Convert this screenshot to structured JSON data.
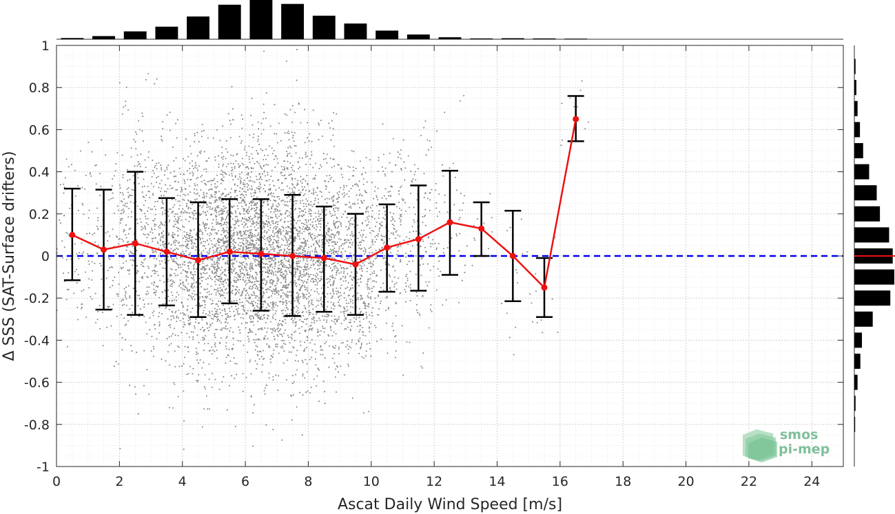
{
  "chart_data": {
    "type": "scatter",
    "xlabel": "Ascat Daily Wind Speed [m/s]",
    "ylabel": "Δ SSS (SAT-Surface drifters)",
    "xlim": [
      0,
      25
    ],
    "ylim": [
      -1,
      1
    ],
    "x_ticks": [
      "0",
      "2",
      "4",
      "6",
      "8",
      "10",
      "12",
      "14",
      "16",
      "18",
      "20",
      "22",
      "24"
    ],
    "y_ticks": [
      "-1",
      "-0.8",
      "-0.6",
      "-0.4",
      "-0.2",
      "0",
      "0.2",
      "0.4",
      "0.6",
      "0.8",
      "1"
    ],
    "grid": true,
    "reference_line": {
      "y": 0,
      "color": "#0000ee",
      "style": "dashed"
    },
    "series": [
      {
        "type": "errorbar-line",
        "color": "#ee1111",
        "x": [
          0.5,
          1.5,
          2.5,
          3.5,
          4.5,
          5.5,
          6.5,
          7.5,
          8.5,
          9.5,
          10.5,
          11.5,
          12.5,
          13.5,
          14.5,
          15.5,
          16.5
        ],
        "y": [
          0.1,
          0.03,
          0.06,
          0.02,
          -0.02,
          0.02,
          0.01,
          0.0,
          -0.01,
          -0.04,
          0.04,
          0.08,
          0.16,
          0.13,
          0.0,
          -0.15,
          0.65
        ],
        "err_low": [
          -0.115,
          -0.255,
          -0.28,
          -0.235,
          -0.29,
          -0.225,
          -0.26,
          -0.285,
          -0.265,
          -0.28,
          -0.17,
          -0.165,
          -0.09,
          0.0,
          -0.215,
          -0.29,
          0.545
        ],
        "err_high": [
          0.32,
          0.315,
          0.4,
          0.275,
          0.255,
          0.27,
          0.27,
          0.29,
          0.235,
          0.2,
          0.245,
          0.335,
          0.405,
          0.255,
          0.215,
          -0.01,
          0.76
        ]
      }
    ],
    "scatter_points": [
      {
        "x_center": 0.5,
        "count": 70,
        "y_mean": 0.1,
        "y_sd": 0.22
      },
      {
        "x_center": 1.5,
        "count": 110,
        "y_mean": 0.03,
        "y_sd": 0.24
      },
      {
        "x_center": 2.5,
        "count": 280,
        "y_mean": 0.06,
        "y_sd": 0.28
      },
      {
        "x_center": 3.5,
        "count": 430,
        "y_mean": 0.02,
        "y_sd": 0.26
      },
      {
        "x_center": 4.5,
        "count": 620,
        "y_mean": -0.02,
        "y_sd": 0.27
      },
      {
        "x_center": 5.5,
        "count": 860,
        "y_mean": 0.02,
        "y_sd": 0.25
      },
      {
        "x_center": 6.5,
        "count": 980,
        "y_mean": 0.01,
        "y_sd": 0.27
      },
      {
        "x_center": 7.5,
        "count": 880,
        "y_mean": 0.0,
        "y_sd": 0.28
      },
      {
        "x_center": 8.5,
        "count": 650,
        "y_mean": -0.01,
        "y_sd": 0.25
      },
      {
        "x_center": 9.5,
        "count": 440,
        "y_mean": -0.04,
        "y_sd": 0.24
      },
      {
        "x_center": 10.5,
        "count": 260,
        "y_mean": 0.04,
        "y_sd": 0.21
      },
      {
        "x_center": 11.5,
        "count": 140,
        "y_mean": 0.08,
        "y_sd": 0.25
      },
      {
        "x_center": 12.5,
        "count": 60,
        "y_mean": 0.16,
        "y_sd": 0.24
      },
      {
        "x_center": 13.5,
        "count": 12,
        "y_mean": 0.13,
        "y_sd": 0.12
      },
      {
        "x_center": 14.5,
        "count": 14,
        "y_mean": 0.0,
        "y_sd": 0.2
      },
      {
        "x_center": 15.5,
        "count": 12,
        "y_mean": -0.15,
        "y_sd": 0.14
      },
      {
        "x_center": 16.5,
        "count": 10,
        "y_mean": 0.65,
        "y_sd": 0.11
      }
    ],
    "top_histogram": {
      "bin_centers": [
        0.5,
        1.5,
        2.5,
        3.5,
        4.5,
        5.5,
        6.5,
        7.5,
        8.5,
        9.5,
        10.5,
        11.5,
        12.5,
        13.5,
        14.5,
        15.5,
        16.5
      ],
      "relative_counts": [
        0.03,
        0.08,
        0.2,
        0.32,
        0.58,
        0.88,
        1.0,
        0.9,
        0.6,
        0.4,
        0.22,
        0.12,
        0.05,
        0.02,
        0.025,
        0.02,
        0.015
      ]
    },
    "right_histogram": {
      "bin_centers": [
        0.9,
        0.8,
        0.7,
        0.6,
        0.5,
        0.4,
        0.3,
        0.2,
        0.1,
        0.0,
        -0.1,
        -0.2,
        -0.3,
        -0.4,
        -0.5,
        -0.6,
        -0.7,
        -0.8
      ],
      "relative_counts": [
        0.03,
        0.05,
        0.08,
        0.14,
        0.22,
        0.37,
        0.56,
        0.64,
        0.87,
        0.96,
        1.0,
        0.9,
        0.46,
        0.19,
        0.15,
        0.08,
        0.03,
        0.02
      ],
      "zero_marker_color": "#ee1111"
    }
  },
  "logo": {
    "line1": "smos",
    "line2": "pi-mep"
  }
}
